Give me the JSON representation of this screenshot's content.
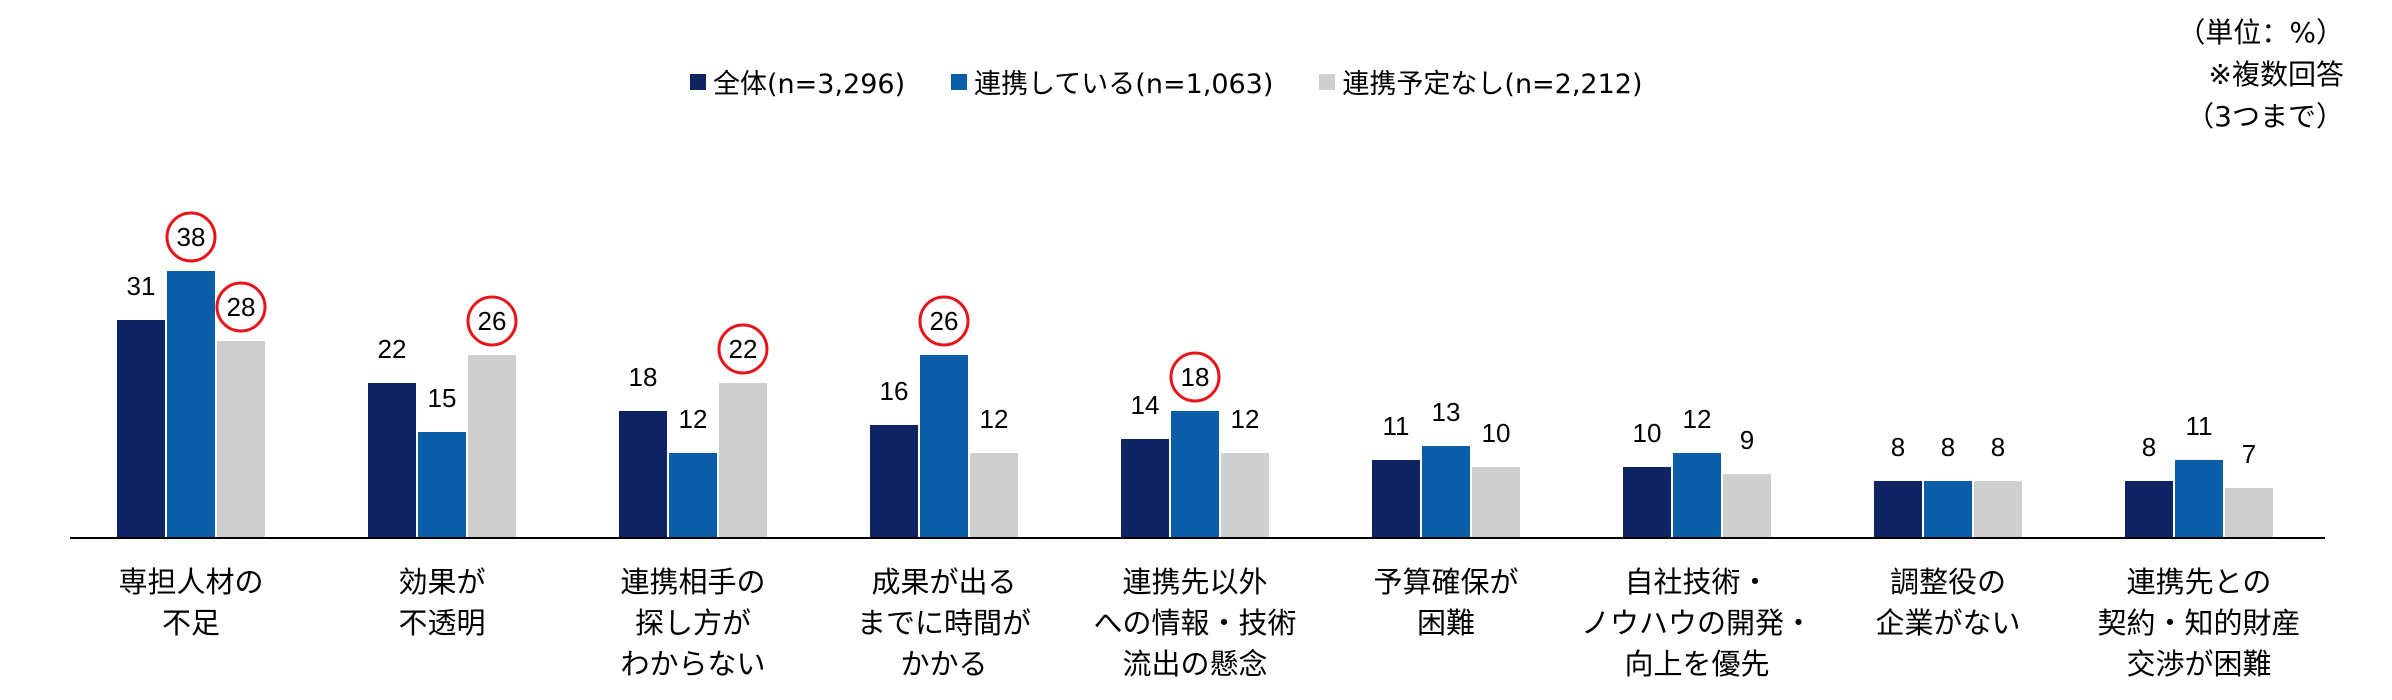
{
  "notes": [
    "（単位：%）",
    "※複数回答",
    "（3つまで）"
  ],
  "chart_data": {
    "type": "bar",
    "categories": [
      [
        "専担人材の",
        "不足"
      ],
      [
        "効果が",
        "不透明"
      ],
      [
        "連携相手の",
        "探し方が",
        "わからない"
      ],
      [
        "成果が出る",
        "までに時間が",
        "かかる"
      ],
      [
        "連携先以外",
        "への情報・技術",
        "流出の懸念"
      ],
      [
        "予算確保が",
        "困難"
      ],
      [
        "自社技術・",
        "ノウハウの開発・",
        "向上を優先"
      ],
      [
        "調整役の",
        "企業がない"
      ],
      [
        "連携先との",
        "契約・知的財産",
        "交渉が困難"
      ]
    ],
    "series": [
      {
        "name": "全体(n=3,296)",
        "color": "#0d2362",
        "values": [
          31,
          22,
          18,
          16,
          14,
          11,
          10,
          8,
          8
        ],
        "highlight": [
          false,
          false,
          false,
          false,
          false,
          false,
          false,
          false,
          false
        ]
      },
      {
        "name": "連携している(n=1,063)",
        "color": "#0b5da8",
        "values": [
          38,
          15,
          12,
          26,
          18,
          13,
          12,
          8,
          11
        ],
        "highlight": [
          true,
          false,
          false,
          true,
          true,
          false,
          false,
          false,
          false
        ]
      },
      {
        "name": "連携予定なし(n=2,212)",
        "color": "#cfcfcf",
        "values": [
          28,
          26,
          22,
          12,
          12,
          10,
          9,
          8,
          7
        ],
        "highlight": [
          true,
          true,
          true,
          false,
          false,
          false,
          false,
          false,
          false
        ]
      }
    ],
    "ylim": [
      0,
      40
    ],
    "highlight_color": "#e8141c",
    "legend_position": "top"
  }
}
